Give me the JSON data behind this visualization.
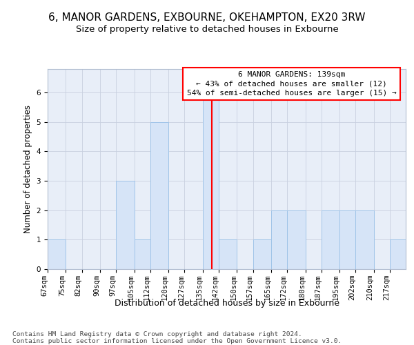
{
  "title1": "6, MANOR GARDENS, EXBOURNE, OKEHAMPTON, EX20 3RW",
  "title2": "Size of property relative to detached houses in Exbourne",
  "xlabel": "Distribution of detached houses by size in Exbourne",
  "ylabel": "Number of detached properties",
  "bins": [
    67,
    75,
    82,
    90,
    97,
    105,
    112,
    120,
    127,
    135,
    142,
    150,
    157,
    165,
    172,
    180,
    187,
    195,
    202,
    210,
    217
  ],
  "counts": [
    1,
    0,
    0,
    0,
    3,
    1,
    5,
    0,
    0,
    6,
    1,
    0,
    1,
    2,
    2,
    0,
    2,
    2,
    2,
    0,
    1
  ],
  "bar_color": "#d6e4f7",
  "bar_edgecolor": "#a0c4e8",
  "reference_line_x": 139,
  "reference_line_color": "red",
  "annotation_line1": "6 MANOR GARDENS: 139sqm",
  "annotation_line2": "← 43% of detached houses are smaller (12)",
  "annotation_line3": "54% of semi-detached houses are larger (15) →",
  "annotation_box_facecolor": "white",
  "annotation_box_edgecolor": "red",
  "ylim_min": 0,
  "ylim_max": 6.8,
  "yticks": [
    0,
    1,
    2,
    3,
    4,
    5,
    6
  ],
  "grid_color": "#c8d0e0",
  "plot_bg_color": "#e8eef8",
  "footer_line1": "Contains HM Land Registry data © Crown copyright and database right 2024.",
  "footer_line2": "Contains public sector information licensed under the Open Government Licence v3.0.",
  "title1_fontsize": 11,
  "title2_fontsize": 9.5,
  "xlabel_fontsize": 9,
  "ylabel_fontsize": 8.5,
  "tick_fontsize": 7.5,
  "annotation_fontsize": 8,
  "footer_fontsize": 6.8
}
